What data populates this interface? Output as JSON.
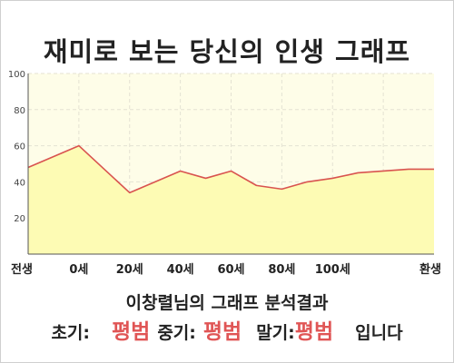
{
  "title": "재미로 보는 당신의 인생 그래프",
  "colors": {
    "plot_bg": "#fefde8",
    "area_fill": "#fdfbb4",
    "line": "#d9534f",
    "axis": "#555555",
    "grid": "#e4e2d2",
    "highlight": "#e05555"
  },
  "chart_data": {
    "type": "area",
    "title": "재미로 보는 당신의 인생 그래프",
    "xlabel": "",
    "ylabel": "",
    "ylim": [
      0,
      100
    ],
    "yticks": [
      20,
      40,
      60,
      80,
      100
    ],
    "grid": true,
    "x_labels": [
      "전생",
      "0세",
      "20세",
      "40세",
      "60세",
      "80세",
      "100세",
      "환생"
    ],
    "x": [
      -10,
      0,
      10,
      20,
      25,
      30,
      35,
      40,
      45,
      50,
      55,
      60,
      65,
      70
    ],
    "series": [
      {
        "values": [
          48,
          60,
          34,
          46,
          42,
          46,
          38,
          36,
          40,
          42,
          45,
          46,
          47,
          47
        ]
      }
    ]
  },
  "summary": {
    "analysis_text": "이창렬님의 그래프 분석결과",
    "early_label": "초기:",
    "early_value": "평범",
    "middle_label": "중기:",
    "middle_value": "평범",
    "late_label": "말기:",
    "late_value": "평범",
    "suffix": "입니다"
  }
}
